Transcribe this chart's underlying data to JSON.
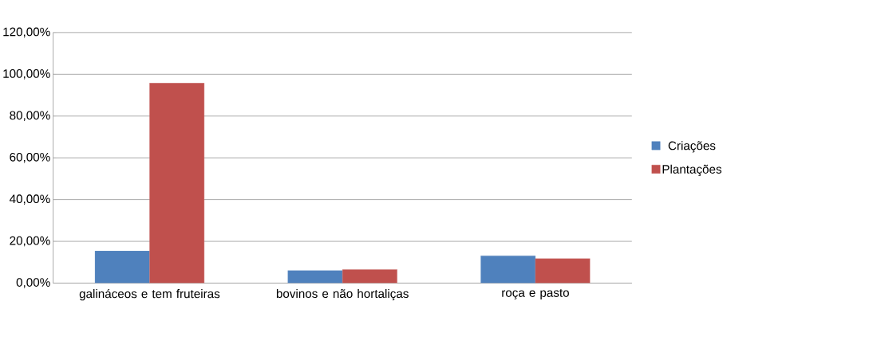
{
  "chart_data": {
    "type": "bar",
    "categories": [
      "galináceos e tem fruteiras",
      "bovinos e não hortaliças",
      "roça e pasto"
    ],
    "series": [
      {
        "name": "Criações",
        "color": "#4f81bd",
        "values": [
          15.4,
          6.0,
          13.1
        ]
      },
      {
        "name": "Plantações",
        "color": "#c0504d",
        "values": [
          95.8,
          6.5,
          11.7
        ]
      }
    ],
    "ylim": [
      0,
      120
    ],
    "yticks": [
      {
        "value": 0,
        "label": "0,00%"
      },
      {
        "value": 20,
        "label": "20,00%"
      },
      {
        "value": 40,
        "label": "40,00%"
      },
      {
        "value": 60,
        "label": "60,00%"
      },
      {
        "value": 80,
        "label": "80,00%"
      },
      {
        "value": 100,
        "label": "100,00%"
      },
      {
        "value": 120,
        "label": "120,00%"
      }
    ],
    "grid": "y",
    "legend": "right"
  }
}
